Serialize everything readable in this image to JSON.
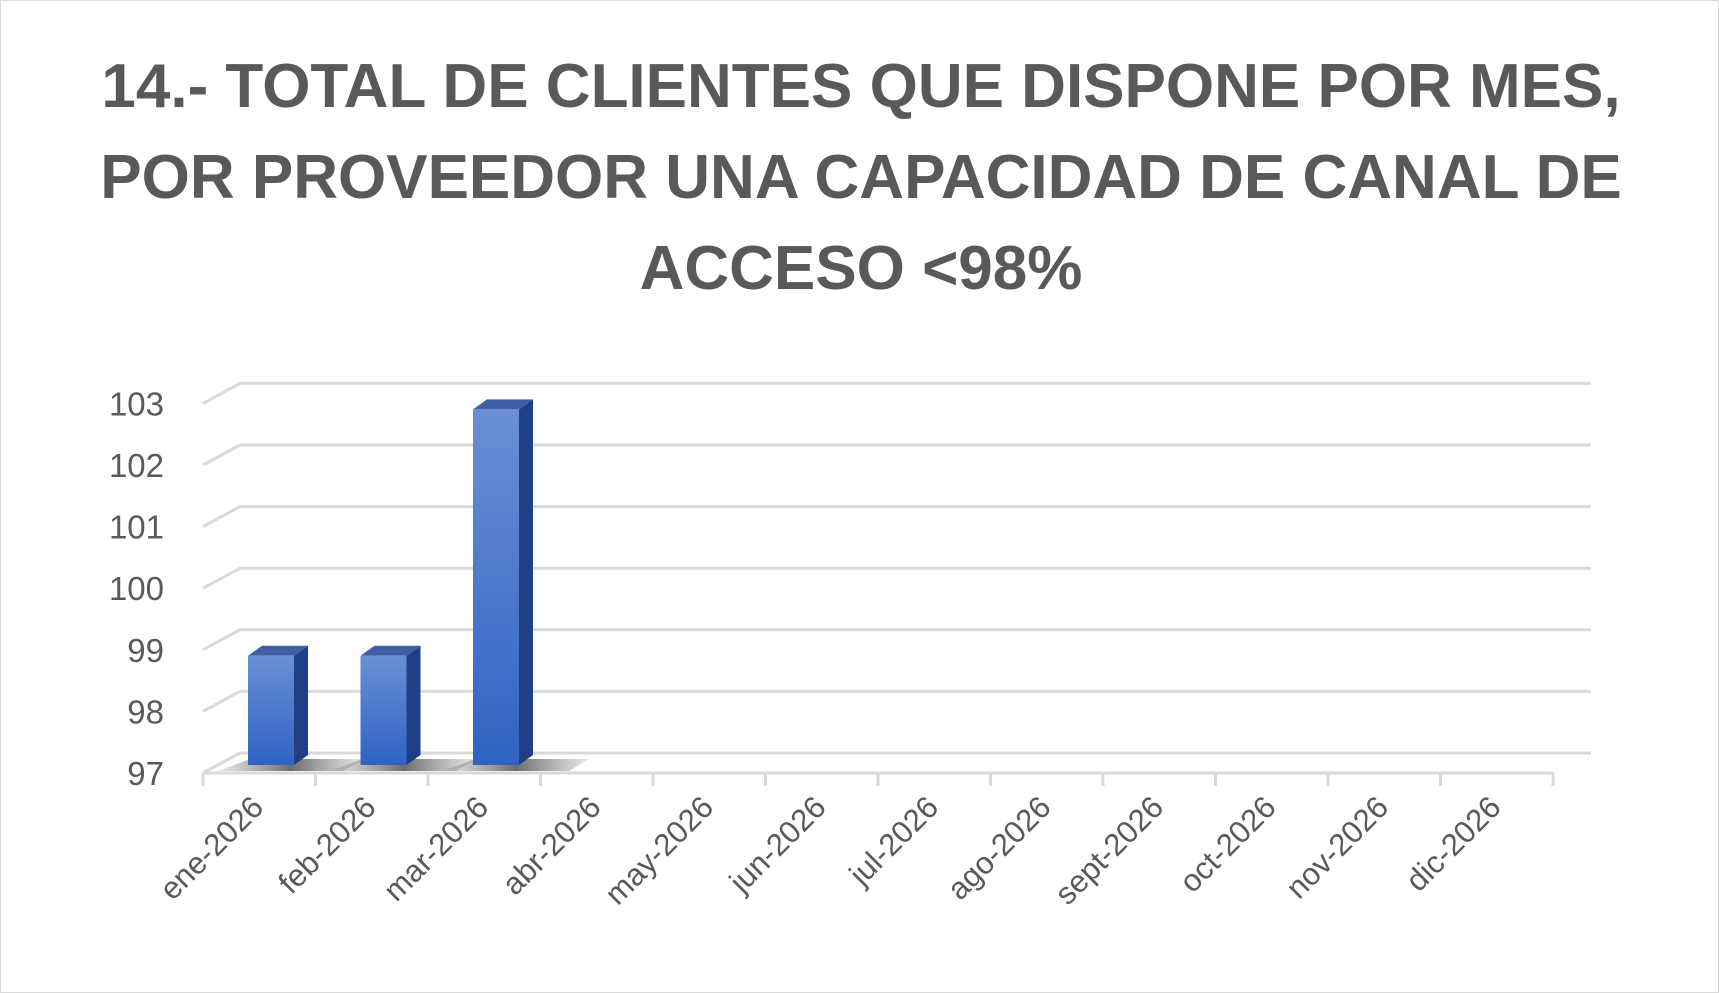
{
  "chart_data": {
    "type": "bar",
    "title": "14.- TOTAL DE CLIENTES QUE DISPONE POR MES, POR PROVEEDOR UNA CAPACIDAD DE CANAL DE ACCESO <98%",
    "categories": [
      "ene-2026",
      "feb-2026",
      "mar-2026",
      "abr-2026",
      "may-2026",
      "jun-2026",
      "jul-2026",
      "ago-2026",
      "sept-2026",
      "oct-2026",
      "nov-2026",
      "dic-2026"
    ],
    "values": [
      99,
      99,
      103,
      null,
      null,
      null,
      null,
      null,
      null,
      null,
      null,
      null
    ],
    "xlabel": "",
    "ylabel": "",
    "ylim": [
      97,
      103
    ],
    "yticks": [
      "97",
      "98",
      "99",
      "100",
      "101",
      "102",
      "103"
    ],
    "grid": true,
    "legend": "none",
    "style": "3d-column"
  },
  "colors": {
    "bar_front_top": "#6a8fd6",
    "bar_front_bottom": "#2f63c2",
    "bar_side": "#1f3f86",
    "bar_top": "#3e5fa6",
    "grid": "#d9d9d9",
    "axis": "#d9d9d9",
    "text": "#595959"
  }
}
